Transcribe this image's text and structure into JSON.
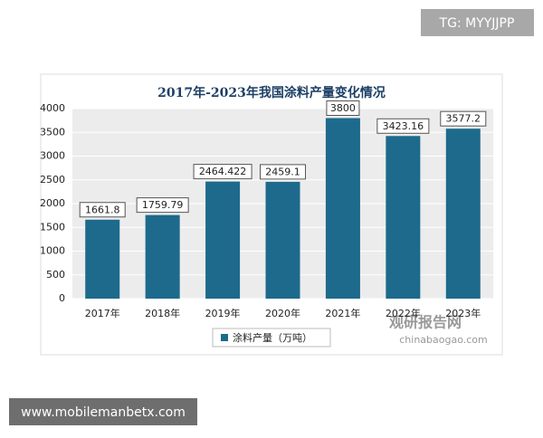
{
  "chart_data": {
    "type": "bar",
    "title": "2017年-2023年我国涂料产量变化情况",
    "categories": [
      "2017年",
      "2018年",
      "2019年",
      "2020年",
      "2021年",
      "2022年",
      "2023年"
    ],
    "series": [
      {
        "name": "涂料产量（万吨）",
        "color": "#1d6a8c",
        "values": [
          1661.8,
          1759.79,
          2464.422,
          2459.1,
          3800,
          3423.16,
          3577.2
        ]
      }
    ],
    "ylim": [
      0,
      4000
    ],
    "yticks": [
      0,
      500,
      1000,
      1500,
      2000,
      2500,
      3000,
      3500,
      4000
    ],
    "grid": true,
    "legend": "bottom"
  },
  "overlays": {
    "tg": "TG: MYYJJPP",
    "site": "www.mobilemanbetx.com",
    "watermark_cn": "观研报告网",
    "watermark_en": "chinabaogao.com"
  }
}
